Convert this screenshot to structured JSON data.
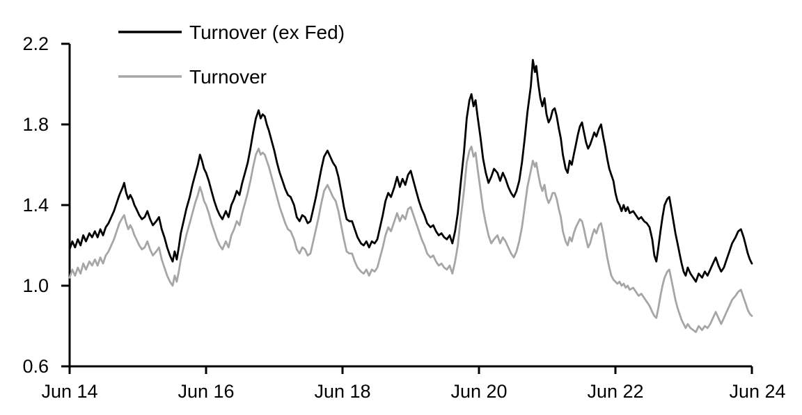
{
  "figure": {
    "background": "#ffffff"
  },
  "chart_data": {
    "type": "line",
    "title": "",
    "xlabel": "",
    "ylabel": "",
    "grid": false,
    "legend_position": "top-left-inside",
    "x_axis": {
      "tick_labels": [
        "Jun 14",
        "Jun 16",
        "Jun 18",
        "Jun 20",
        "Jun 22",
        "Jun 24"
      ],
      "tick_positions_years": [
        0,
        2,
        4,
        6,
        8,
        10
      ],
      "range_years": [
        0,
        10
      ]
    },
    "y_axis": {
      "tick_labels": [
        "0.6",
        "1.0",
        "1.4",
        "1.8",
        "2.2"
      ],
      "ticks": [
        0.6,
        1.0,
        1.4,
        1.8,
        2.2
      ],
      "range": [
        0.6,
        2.2
      ]
    },
    "legend": [
      {
        "label": "Turnover (ex Fed)",
        "color": "#000000"
      },
      {
        "label": "Turnover",
        "color": "#a6a6a6"
      }
    ],
    "x_years_since_first_tick": [
      0.0,
      0.04,
      0.08,
      0.12,
      0.16,
      0.2,
      0.24,
      0.29,
      0.33,
      0.37,
      0.41,
      0.45,
      0.49,
      0.53,
      0.57,
      0.61,
      0.65,
      0.69,
      0.73,
      0.78,
      0.8,
      0.83,
      0.86,
      0.89,
      0.92,
      0.95,
      0.98,
      1.02,
      1.06,
      1.1,
      1.14,
      1.18,
      1.22,
      1.27,
      1.31,
      1.35,
      1.39,
      1.43,
      1.47,
      1.51,
      1.54,
      1.57,
      1.6,
      1.63,
      1.67,
      1.71,
      1.76,
      1.8,
      1.84,
      1.88,
      1.91,
      1.94,
      1.97,
      2.0,
      2.04,
      2.08,
      2.12,
      2.16,
      2.2,
      2.24,
      2.29,
      2.33,
      2.37,
      2.41,
      2.45,
      2.49,
      2.53,
      2.57,
      2.61,
      2.65,
      2.69,
      2.73,
      2.77,
      2.8,
      2.83,
      2.86,
      2.89,
      2.92,
      2.96,
      3.0,
      3.04,
      3.08,
      3.12,
      3.16,
      3.2,
      3.24,
      3.29,
      3.33,
      3.37,
      3.41,
      3.45,
      3.49,
      3.53,
      3.57,
      3.61,
      3.65,
      3.69,
      3.73,
      3.78,
      3.82,
      3.86,
      3.9,
      3.94,
      3.98,
      4.02,
      4.06,
      4.1,
      4.14,
      4.18,
      4.22,
      4.27,
      4.31,
      4.35,
      4.39,
      4.43,
      4.47,
      4.51,
      4.55,
      4.59,
      4.63,
      4.67,
      4.71,
      4.76,
      4.8,
      4.84,
      4.88,
      4.92,
      4.96,
      5.0,
      5.04,
      5.08,
      5.12,
      5.16,
      5.2,
      5.24,
      5.29,
      5.33,
      5.37,
      5.41,
      5.45,
      5.49,
      5.53,
      5.57,
      5.61,
      5.65,
      5.69,
      5.73,
      5.78,
      5.82,
      5.86,
      5.89,
      5.92,
      5.95,
      5.98,
      6.02,
      6.06,
      6.1,
      6.14,
      6.18,
      6.22,
      6.27,
      6.31,
      6.35,
      6.39,
      6.43,
      6.47,
      6.51,
      6.55,
      6.59,
      6.63,
      6.67,
      6.71,
      6.76,
      6.79,
      6.82,
      6.84,
      6.87,
      6.9,
      6.93,
      6.96,
      6.99,
      7.02,
      7.05,
      7.08,
      7.11,
      7.14,
      7.17,
      7.2,
      7.23,
      7.27,
      7.3,
      7.33,
      7.36,
      7.39,
      7.42,
      7.45,
      7.48,
      7.51,
      7.54,
      7.57,
      7.6,
      7.63,
      7.66,
      7.69,
      7.72,
      7.76,
      7.79,
      7.82,
      7.85,
      7.88,
      7.91,
      7.94,
      7.97,
      8.0,
      8.03,
      8.06,
      8.09,
      8.12,
      8.15,
      8.18,
      8.21,
      8.26,
      8.3,
      8.34,
      8.38,
      8.42,
      8.46,
      8.5,
      8.54,
      8.57,
      8.6,
      8.63,
      8.66,
      8.69,
      8.72,
      8.76,
      8.79,
      8.82,
      8.85,
      8.88,
      8.91,
      8.94,
      8.97,
      9.0,
      9.03,
      9.06,
      9.1,
      9.14,
      9.18,
      9.22,
      9.27,
      9.31,
      9.35,
      9.39,
      9.43,
      9.47,
      9.51,
      9.55,
      9.59,
      9.63,
      9.67,
      9.71,
      9.76,
      9.8,
      9.84,
      9.88,
      9.91,
      9.94,
      9.97,
      10.0
    ],
    "series": [
      {
        "name": "Turnover (ex Fed)",
        "color": "#000000",
        "values": [
          1.18,
          1.22,
          1.19,
          1.23,
          1.2,
          1.25,
          1.22,
          1.26,
          1.24,
          1.27,
          1.24,
          1.28,
          1.25,
          1.29,
          1.31,
          1.34,
          1.37,
          1.41,
          1.45,
          1.49,
          1.51,
          1.46,
          1.43,
          1.45,
          1.43,
          1.4,
          1.38,
          1.35,
          1.33,
          1.34,
          1.37,
          1.33,
          1.3,
          1.32,
          1.34,
          1.28,
          1.24,
          1.19,
          1.15,
          1.12,
          1.17,
          1.13,
          1.19,
          1.26,
          1.32,
          1.38,
          1.44,
          1.5,
          1.55,
          1.6,
          1.65,
          1.62,
          1.58,
          1.56,
          1.52,
          1.47,
          1.42,
          1.38,
          1.35,
          1.33,
          1.37,
          1.34,
          1.4,
          1.43,
          1.47,
          1.45,
          1.51,
          1.56,
          1.61,
          1.68,
          1.76,
          1.83,
          1.87,
          1.83,
          1.85,
          1.84,
          1.8,
          1.77,
          1.72,
          1.67,
          1.61,
          1.56,
          1.52,
          1.48,
          1.45,
          1.44,
          1.4,
          1.34,
          1.32,
          1.35,
          1.34,
          1.31,
          1.32,
          1.38,
          1.44,
          1.51,
          1.58,
          1.64,
          1.67,
          1.64,
          1.61,
          1.59,
          1.54,
          1.47,
          1.39,
          1.33,
          1.32,
          1.32,
          1.28,
          1.24,
          1.21,
          1.2,
          1.22,
          1.19,
          1.22,
          1.21,
          1.23,
          1.29,
          1.35,
          1.42,
          1.46,
          1.44,
          1.49,
          1.54,
          1.49,
          1.53,
          1.5,
          1.55,
          1.57,
          1.52,
          1.47,
          1.42,
          1.38,
          1.35,
          1.31,
          1.29,
          1.3,
          1.27,
          1.25,
          1.26,
          1.24,
          1.23,
          1.25,
          1.21,
          1.27,
          1.36,
          1.5,
          1.66,
          1.83,
          1.92,
          1.95,
          1.89,
          1.92,
          1.84,
          1.74,
          1.63,
          1.56,
          1.51,
          1.54,
          1.58,
          1.56,
          1.52,
          1.56,
          1.53,
          1.49,
          1.46,
          1.44,
          1.47,
          1.52,
          1.61,
          1.73,
          1.86,
          1.99,
          2.12,
          2.06,
          2.09,
          2.0,
          1.93,
          1.89,
          1.93,
          1.85,
          1.81,
          1.83,
          1.87,
          1.88,
          1.84,
          1.78,
          1.73,
          1.65,
          1.58,
          1.56,
          1.62,
          1.6,
          1.65,
          1.7,
          1.75,
          1.79,
          1.81,
          1.76,
          1.71,
          1.68,
          1.7,
          1.73,
          1.76,
          1.74,
          1.78,
          1.8,
          1.74,
          1.69,
          1.63,
          1.58,
          1.55,
          1.52,
          1.46,
          1.42,
          1.4,
          1.37,
          1.4,
          1.37,
          1.39,
          1.36,
          1.37,
          1.35,
          1.33,
          1.34,
          1.32,
          1.31,
          1.29,
          1.23,
          1.15,
          1.12,
          1.19,
          1.27,
          1.34,
          1.4,
          1.43,
          1.44,
          1.38,
          1.32,
          1.26,
          1.21,
          1.16,
          1.11,
          1.07,
          1.05,
          1.09,
          1.06,
          1.04,
          1.02,
          1.06,
          1.04,
          1.07,
          1.05,
          1.08,
          1.11,
          1.14,
          1.1,
          1.07,
          1.09,
          1.13,
          1.17,
          1.21,
          1.24,
          1.27,
          1.28,
          1.24,
          1.2,
          1.16,
          1.13,
          1.11
        ]
      },
      {
        "name": "Turnover",
        "color": "#a6a6a6",
        "values": [
          1.04,
          1.08,
          1.05,
          1.09,
          1.06,
          1.11,
          1.08,
          1.12,
          1.1,
          1.13,
          1.1,
          1.14,
          1.11,
          1.15,
          1.17,
          1.2,
          1.23,
          1.27,
          1.31,
          1.34,
          1.35,
          1.31,
          1.28,
          1.3,
          1.28,
          1.25,
          1.23,
          1.2,
          1.18,
          1.19,
          1.22,
          1.18,
          1.15,
          1.17,
          1.19,
          1.13,
          1.09,
          1.05,
          1.02,
          1.0,
          1.05,
          1.02,
          1.07,
          1.13,
          1.19,
          1.25,
          1.31,
          1.36,
          1.41,
          1.45,
          1.49,
          1.46,
          1.42,
          1.4,
          1.36,
          1.31,
          1.27,
          1.23,
          1.2,
          1.18,
          1.22,
          1.19,
          1.25,
          1.28,
          1.32,
          1.3,
          1.36,
          1.41,
          1.46,
          1.52,
          1.59,
          1.65,
          1.68,
          1.65,
          1.66,
          1.65,
          1.62,
          1.59,
          1.54,
          1.49,
          1.44,
          1.39,
          1.35,
          1.31,
          1.28,
          1.27,
          1.23,
          1.18,
          1.16,
          1.19,
          1.18,
          1.15,
          1.16,
          1.22,
          1.28,
          1.34,
          1.41,
          1.47,
          1.5,
          1.47,
          1.44,
          1.42,
          1.37,
          1.3,
          1.23,
          1.17,
          1.16,
          1.16,
          1.12,
          1.09,
          1.07,
          1.06,
          1.08,
          1.05,
          1.08,
          1.07,
          1.09,
          1.14,
          1.19,
          1.25,
          1.29,
          1.27,
          1.32,
          1.36,
          1.32,
          1.35,
          1.33,
          1.38,
          1.39,
          1.35,
          1.31,
          1.27,
          1.23,
          1.2,
          1.16,
          1.14,
          1.15,
          1.12,
          1.1,
          1.11,
          1.09,
          1.08,
          1.1,
          1.06,
          1.12,
          1.2,
          1.33,
          1.47,
          1.61,
          1.67,
          1.69,
          1.64,
          1.66,
          1.58,
          1.48,
          1.38,
          1.31,
          1.25,
          1.21,
          1.23,
          1.25,
          1.21,
          1.24,
          1.22,
          1.19,
          1.16,
          1.14,
          1.17,
          1.22,
          1.29,
          1.39,
          1.49,
          1.57,
          1.62,
          1.59,
          1.61,
          1.55,
          1.5,
          1.47,
          1.5,
          1.44,
          1.41,
          1.43,
          1.46,
          1.46,
          1.43,
          1.38,
          1.34,
          1.27,
          1.22,
          1.2,
          1.24,
          1.22,
          1.26,
          1.29,
          1.31,
          1.33,
          1.32,
          1.28,
          1.23,
          1.19,
          1.21,
          1.25,
          1.28,
          1.26,
          1.3,
          1.31,
          1.26,
          1.2,
          1.14,
          1.09,
          1.05,
          1.03,
          1.02,
          1.01,
          1.02,
          1.0,
          1.01,
          0.99,
          1.0,
          0.98,
          0.99,
          0.97,
          0.95,
          0.96,
          0.94,
          0.92,
          0.9,
          0.87,
          0.85,
          0.84,
          0.89,
          0.95,
          1.0,
          1.04,
          1.07,
          1.08,
          1.03,
          0.98,
          0.93,
          0.89,
          0.86,
          0.83,
          0.81,
          0.79,
          0.81,
          0.79,
          0.78,
          0.77,
          0.8,
          0.78,
          0.8,
          0.79,
          0.81,
          0.84,
          0.87,
          0.84,
          0.81,
          0.84,
          0.87,
          0.9,
          0.93,
          0.95,
          0.97,
          0.98,
          0.94,
          0.91,
          0.88,
          0.86,
          0.85
        ]
      }
    ]
  },
  "colors": {
    "background": "#ffffff",
    "axis": "#000000",
    "text": "#000000",
    "series_black": "#000000",
    "series_gray": "#a6a6a6"
  }
}
